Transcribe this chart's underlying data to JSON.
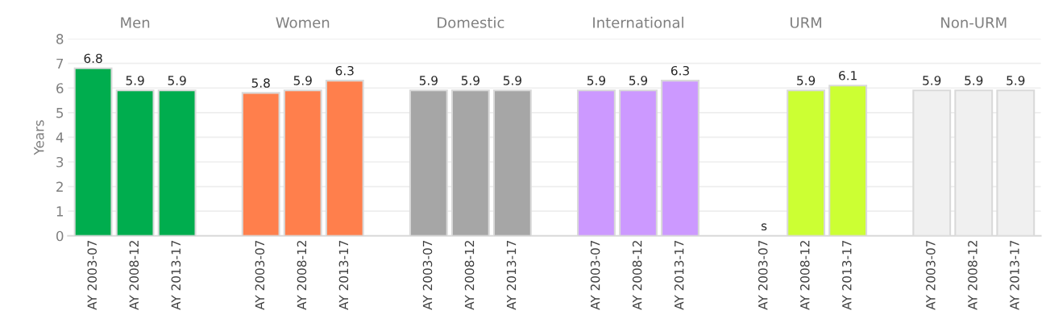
{
  "chart_data": {
    "type": "bar",
    "ylabel": "Years",
    "categories": [
      "AY 2003-07",
      "AY 2008-12",
      "AY 2013-17",
      null,
      "AY 2003-07",
      "AY 2008-12",
      "AY 2013-17",
      null,
      "AY 2003-07",
      "AY 2008-12",
      "AY 2013-17",
      null,
      "AY 2003-07",
      "AY 2008-12",
      "AY 2013-17",
      null,
      "AY 2003-07",
      "AY 2008-12",
      "AY 2013-17",
      null,
      "AY 2003-07",
      "AY 2008-12",
      "AY 2013-17"
    ],
    "values": [
      6.8,
      5.9,
      5.9,
      null,
      5.8,
      5.9,
      6.3,
      null,
      5.9,
      5.9,
      5.9,
      null,
      5.9,
      5.9,
      6.3,
      null,
      null,
      5.9,
      6.1,
      null,
      5.9,
      5.9,
      5.9
    ],
    "value_labels": [
      "6.8",
      "5.9",
      "5.9",
      null,
      "5.8",
      "5.9",
      "6.3",
      null,
      "5.9",
      "5.9",
      "5.9",
      null,
      "5.9",
      "5.9",
      "6.3",
      null,
      "s",
      "5.9",
      "6.1",
      null,
      "5.9",
      "5.9",
      "5.9"
    ],
    "colors": [
      "#00ad4e",
      "#00ad4e",
      "#00ad4e",
      null,
      "#ff7f4c",
      "#ff7f4c",
      "#ff7f4c",
      null,
      "#a6a6a6",
      "#a6a6a6",
      "#a6a6a6",
      null,
      "#cc99ff",
      "#cc99ff",
      "#cc99ff",
      null,
      "#ccff33",
      "#ccff33",
      "#ccff33",
      null,
      "#f0f0f0",
      "#f0f0f0",
      "#f0f0f0"
    ],
    "annotations": [
      "Men",
      "Women",
      "Domestic",
      "International",
      "URM",
      "Non-URM"
    ],
    "ylim": [
      0,
      8
    ],
    "yticks": [
      0,
      1,
      2,
      3,
      4,
      5,
      6,
      7,
      8
    ],
    "grid": "y"
  }
}
